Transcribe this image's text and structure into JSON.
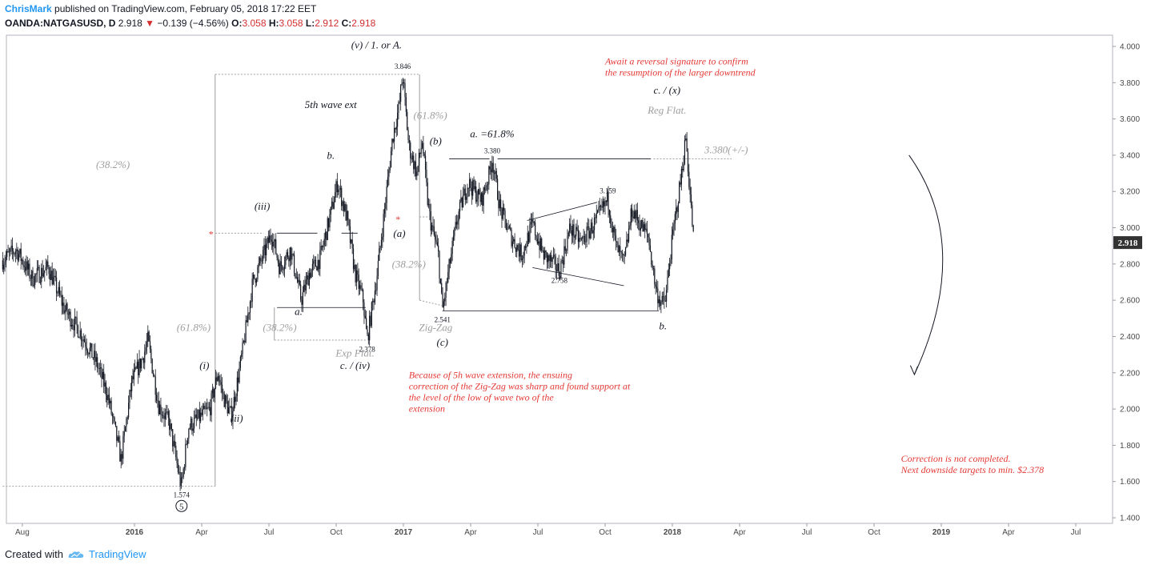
{
  "header": {
    "author": "ChrisMark",
    "published": "published on TradingView.com, February 05, 2018 17:22 EET"
  },
  "info": {
    "symbol": "OANDA:NATGASUSD, D",
    "last": "2.918",
    "change": "−0.139 (−4.56%)",
    "open_label": "O:",
    "open": "3.058",
    "high_label": "H:",
    "high": "3.058",
    "low_label": "L:",
    "low": "2.912",
    "close_label": "C:",
    "close": "2.918"
  },
  "footer": {
    "created_with": "Created with",
    "brand": "TradingView"
  },
  "colors": {
    "candle": "#131722",
    "red_text": "#e53935",
    "gray_text": "#9e9e9e",
    "price_badge": "#333333"
  },
  "chart_data": {
    "type": "candlestick",
    "symbol": "OANDA:NATGASUSD",
    "interval": "D",
    "y_axis": {
      "range": [
        1.4,
        4.0
      ],
      "ticks": [
        "4.000",
        "3.800",
        "3.600",
        "3.400",
        "3.200",
        "3.000",
        "2.800",
        "2.600",
        "2.400",
        "2.200",
        "2.000",
        "1.800",
        "1.600",
        "1.400"
      ]
    },
    "x_axis": {
      "ticks": [
        {
          "label": "Aug",
          "t": 2015.583,
          "bold": false
        },
        {
          "label": "2016",
          "t": 2016.0,
          "bold": true
        },
        {
          "label": "Apr",
          "t": 2016.25,
          "bold": false
        },
        {
          "label": "Jul",
          "t": 2016.5,
          "bold": false
        },
        {
          "label": "Oct",
          "t": 2016.75,
          "bold": false
        },
        {
          "label": "2017",
          "t": 2017.0,
          "bold": true
        },
        {
          "label": "Apr",
          "t": 2017.25,
          "bold": false
        },
        {
          "label": "Jul",
          "t": 2017.5,
          "bold": false
        },
        {
          "label": "Oct",
          "t": 2017.75,
          "bold": false
        },
        {
          "label": "2018",
          "t": 2018.0,
          "bold": true
        },
        {
          "label": "Apr",
          "t": 2018.25,
          "bold": false
        },
        {
          "label": "Jul",
          "t": 2018.5,
          "bold": false
        },
        {
          "label": "Oct",
          "t": 2018.75,
          "bold": false
        },
        {
          "label": "2019",
          "t": 2019.0,
          "bold": true
        },
        {
          "label": "Apr",
          "t": 2019.25,
          "bold": false
        },
        {
          "label": "Jul",
          "t": 2019.5,
          "bold": false
        }
      ]
    },
    "last_price": "2.918",
    "price_path": [
      [
        2015.51,
        2.82
      ],
      [
        2015.56,
        2.88
      ],
      [
        2015.62,
        2.72
      ],
      [
        2015.68,
        2.78
      ],
      [
        2015.74,
        2.55
      ],
      [
        2015.8,
        2.42
      ],
      [
        2015.86,
        2.25
      ],
      [
        2015.9,
        2.08
      ],
      [
        2015.95,
        1.72
      ],
      [
        2015.99,
        2.15
      ],
      [
        2016.03,
        2.28
      ],
      [
        2016.05,
        2.38
      ],
      [
        2016.09,
        2.02
      ],
      [
        2016.13,
        1.92
      ],
      [
        2016.17,
        1.6
      ],
      [
        2016.175,
        1.574
      ],
      [
        2016.2,
        1.9
      ],
      [
        2016.24,
        1.95
      ],
      [
        2016.28,
        2.0
      ],
      [
        2016.31,
        2.2
      ],
      [
        2016.33,
        2.07
      ],
      [
        2016.36,
        1.96
      ],
      [
        2016.4,
        2.3
      ],
      [
        2016.44,
        2.7
      ],
      [
        2016.48,
        2.85
      ],
      [
        2016.51,
        2.97
      ],
      [
        2016.54,
        2.78
      ],
      [
        2016.58,
        2.88
      ],
      [
        2016.62,
        2.6
      ],
      [
        2016.65,
        2.75
      ],
      [
        2016.69,
        2.83
      ],
      [
        2016.73,
        3.08
      ],
      [
        2016.755,
        3.25
      ],
      [
        2016.79,
        3.05
      ],
      [
        2016.82,
        2.75
      ],
      [
        2016.85,
        2.6
      ],
      [
        2016.865,
        2.378
      ],
      [
        2016.9,
        2.72
      ],
      [
        2016.93,
        3.1
      ],
      [
        2016.96,
        3.5
      ],
      [
        2016.985,
        3.68
      ],
      [
        2016.997,
        3.846
      ],
      [
        2017.02,
        3.45
      ],
      [
        2017.05,
        3.3
      ],
      [
        2017.07,
        3.48
      ],
      [
        2017.09,
        3.15
      ],
      [
        2017.1,
        3.04
      ],
      [
        2017.13,
        2.85
      ],
      [
        2017.145,
        2.541
      ],
      [
        2017.17,
        2.78
      ],
      [
        2017.2,
        3.05
      ],
      [
        2017.24,
        3.25
      ],
      [
        2017.29,
        3.15
      ],
      [
        2017.32,
        3.3
      ],
      [
        2017.33,
        3.38
      ],
      [
        2017.36,
        3.1
      ],
      [
        2017.4,
        2.95
      ],
      [
        2017.44,
        2.85
      ],
      [
        2017.48,
        3.02
      ],
      [
        2017.52,
        2.85
      ],
      [
        2017.56,
        2.8
      ],
      [
        2017.58,
        2.758
      ],
      [
        2017.62,
        3.0
      ],
      [
        2017.66,
        2.92
      ],
      [
        2017.7,
        3.0
      ],
      [
        2017.74,
        3.1
      ],
      [
        2017.76,
        3.159
      ],
      [
        2017.79,
        2.9
      ],
      [
        2017.82,
        2.8
      ],
      [
        2017.85,
        3.1
      ],
      [
        2017.88,
        3.02
      ],
      [
        2017.91,
        2.95
      ],
      [
        2017.94,
        2.65
      ],
      [
        2017.96,
        2.58
      ],
      [
        2017.975,
        2.6
      ],
      [
        2017.99,
        2.82
      ],
      [
        2018.01,
        3.05
      ],
      [
        2018.03,
        3.25
      ],
      [
        2018.05,
        3.5
      ],
      [
        2018.07,
        3.1
      ],
      [
        2018.08,
        2.918
      ]
    ],
    "price_labels": [
      {
        "text": "3.846",
        "t": 2016.997,
        "p": 3.846
      },
      {
        "text": "3.380",
        "t": 2017.33,
        "p": 3.38
      },
      {
        "text": "3.159",
        "t": 2017.76,
        "p": 3.159
      },
      {
        "text": "2.758",
        "t": 2017.58,
        "p": 2.758
      },
      {
        "text": "2.541",
        "t": 2017.145,
        "p": 2.541
      },
      {
        "text": "2.378",
        "t": 2016.865,
        "p": 2.378
      },
      {
        "text": "1.574",
        "t": 2016.175,
        "p": 1.574
      }
    ],
    "wave_labels": [
      {
        "text": "(v) / 1. or A.",
        "t": 2016.9,
        "p": 3.99,
        "color": "dark"
      },
      {
        "text": "5th wave ext",
        "t": 2016.73,
        "p": 3.66,
        "color": "dark"
      },
      {
        "text": "(61.8%)",
        "t": 2017.1,
        "p": 3.6,
        "color": "gray"
      },
      {
        "text": "(b)",
        "t": 2017.12,
        "p": 3.46,
        "color": "dark"
      },
      {
        "text": "a.  =61.8%",
        "t": 2017.33,
        "p": 3.5,
        "color": "dark"
      },
      {
        "text": "b.",
        "t": 2016.73,
        "p": 3.38,
        "color": "dark"
      },
      {
        "text": "(38.2%)",
        "t": 2015.92,
        "p": 3.33,
        "color": "gray"
      },
      {
        "text": "(iii)",
        "t": 2016.475,
        "p": 3.1,
        "color": "dark"
      },
      {
        "text": "(a)",
        "t": 2016.985,
        "p": 2.95,
        "color": "dark"
      },
      {
        "text": "(38.2%)",
        "t": 2017.02,
        "p": 2.78,
        "color": "gray"
      },
      {
        "text": "a.",
        "t": 2016.61,
        "p": 2.52,
        "color": "dark"
      },
      {
        "text": "(38.2%)",
        "t": 2016.54,
        "p": 2.43,
        "color": "gray"
      },
      {
        "text": "(61.8%)",
        "t": 2016.22,
        "p": 2.43,
        "color": "gray"
      },
      {
        "text": "Zig-Zag",
        "t": 2017.12,
        "p": 2.43,
        "color": "gray"
      },
      {
        "text": "(c)",
        "t": 2017.145,
        "p": 2.35,
        "color": "dark"
      },
      {
        "text": "Exp Flat.",
        "t": 2016.82,
        "p": 2.29,
        "color": "gray"
      },
      {
        "text": "c. / (iv)",
        "t": 2016.82,
        "p": 2.22,
        "color": "dark"
      },
      {
        "text": "(i)",
        "t": 2016.26,
        "p": 2.22,
        "color": "dark"
      },
      {
        "text": "(ii)",
        "t": 2016.38,
        "p": 1.93,
        "color": "dark"
      },
      {
        "text": "c. / (x)",
        "t": 2017.98,
        "p": 3.74,
        "color": "dark"
      },
      {
        "text": "Reg Flat.",
        "t": 2017.98,
        "p": 3.63,
        "color": "gray"
      },
      {
        "text": "3.380(+/-)",
        "t": 2018.2,
        "p": 3.41,
        "color": "gray"
      },
      {
        "text": "b.",
        "t": 2017.965,
        "p": 2.44,
        "color": "dark"
      }
    ],
    "circled_label": {
      "text": "5",
      "t": 2016.175,
      "p": 1.465
    },
    "red_notes": [
      {
        "lines": [
          "Await a reversal signature to confirm",
          " the resumption of the larger downtrend"
        ],
        "t": 2017.75,
        "p": 3.9
      },
      {
        "lines": [
          "Because of 5h wave extension, the ensuing",
          "correction of the Zig-Zag was sharp and found support at",
          "the level of the low of wave two of the",
          "extension"
        ],
        "t": 2217.0,
        "p": 2.17
      },
      {
        "lines": [
          "Correction is not completed.",
          "Next downside targets to min. $2.378"
        ],
        "t": 2018.85,
        "p": 1.71
      }
    ]
  }
}
